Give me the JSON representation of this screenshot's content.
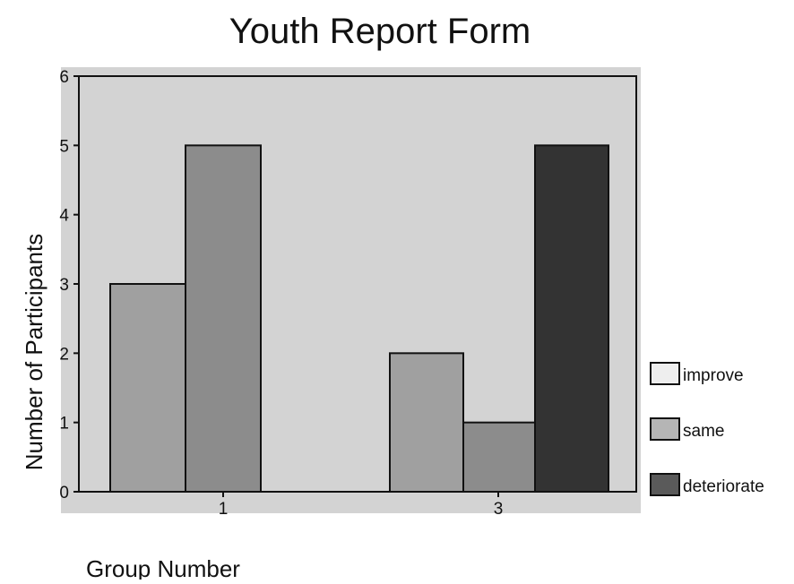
{
  "chart_data": {
    "type": "bar",
    "title": "Youth Report Form",
    "xlabel": "Group Number",
    "ylabel": "Number of Participants",
    "categories": [
      "1",
      "3"
    ],
    "ylim": [
      0,
      6
    ],
    "yticks": [
      "0",
      "1",
      "2",
      "3",
      "4",
      "5",
      "6"
    ],
    "grid": false,
    "legend_position": "right",
    "series": [
      {
        "name": "improve",
        "fill": "#d9d9d9",
        "values": [
          0,
          0
        ]
      },
      {
        "name": "same",
        "fill": "#a0a0a0",
        "values": [
          3,
          2
        ]
      },
      {
        "name": "deteriorate",
        "fill": "#8c8c8c",
        "values": [
          5,
          1
        ]
      },
      {
        "name": "",
        "fill": "#333333",
        "values": [
          0,
          5
        ]
      }
    ],
    "legend": [
      {
        "label": "improve",
        "fill": "#eeeeee"
      },
      {
        "label": "same",
        "fill": "#b5b5b5"
      },
      {
        "label": "deteriorate",
        "fill": "#5a5a5a"
      }
    ],
    "plot_background": "#d3d3d3"
  }
}
